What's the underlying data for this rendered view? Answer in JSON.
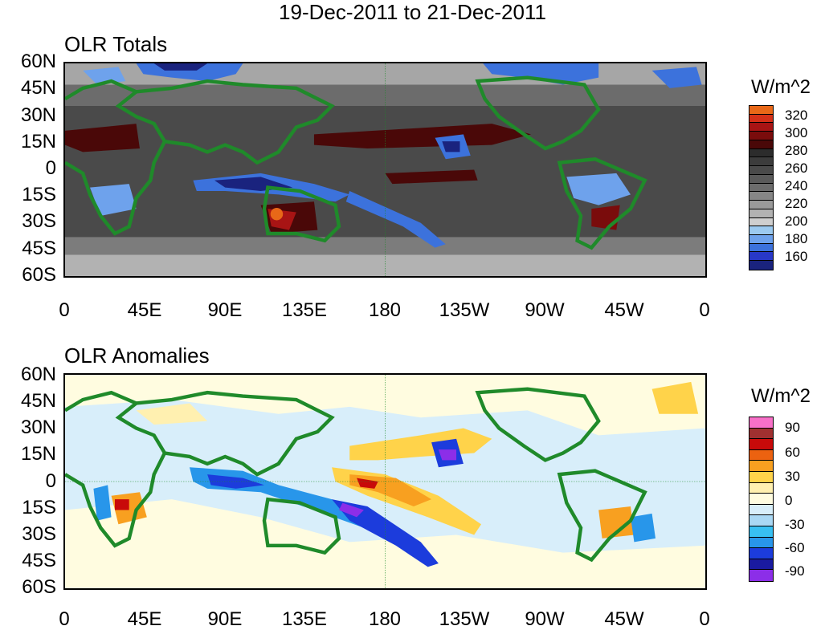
{
  "figure": {
    "title": "19-Dec-2011 to 21-Dec-2011",
    "lat_labels": [
      "60N",
      "45N",
      "30N",
      "15N",
      "0",
      "15S",
      "30S",
      "45S",
      "60S"
    ],
    "lon_labels": [
      "0",
      "45E",
      "90E",
      "135E",
      "180",
      "135W",
      "90W",
      "45W",
      "0"
    ]
  },
  "chart_data": [
    {
      "type": "heatmap",
      "title": "OLR Totals",
      "units": "W/m^2",
      "lat_range": [
        -60,
        60
      ],
      "lon_range": [
        0,
        360
      ],
      "levels": [
        "160",
        "180",
        "200",
        "220",
        "240",
        "260",
        "280",
        "300",
        "320"
      ],
      "colors": [
        "#1a237e",
        "#2838c8",
        "#3c72dc",
        "#6ea2ec",
        "#9ccaf0",
        "#cfcfcf",
        "#b2b2b2",
        "#9a9a9a",
        "#868686",
        "#6c6c6c",
        "#5a5a5a",
        "#4a4a4a",
        "#3c3c3c",
        "#2c2c2c",
        "#4a0808",
        "#7a0c0c",
        "#a81414",
        "#d43018",
        "#e86818"
      ],
      "labeled_levels": [
        "320",
        "300",
        "280",
        "260",
        "240",
        "220",
        "200",
        "180",
        "160"
      ]
    },
    {
      "type": "heatmap",
      "title": "OLR Anomalies",
      "units": "W/m^2",
      "lat_range": [
        -60,
        60
      ],
      "lon_range": [
        0,
        360
      ],
      "levels": [
        "-90",
        "-60",
        "-30",
        "0",
        "30",
        "60",
        "90"
      ],
      "colors": [
        "#8c2ee8",
        "#1a1aa0",
        "#1c3cdc",
        "#2896ea",
        "#38c0f2",
        "#aad8f4",
        "#d8eefa",
        "#fffce0",
        "#fff0b0",
        "#ffd34a",
        "#f8a020",
        "#ec6210",
        "#c80a0a",
        "#a03030",
        "#f870c8"
      ],
      "labeled_levels": [
        "90",
        "60",
        "30",
        "0",
        "-30",
        "-60",
        "-90"
      ]
    }
  ]
}
